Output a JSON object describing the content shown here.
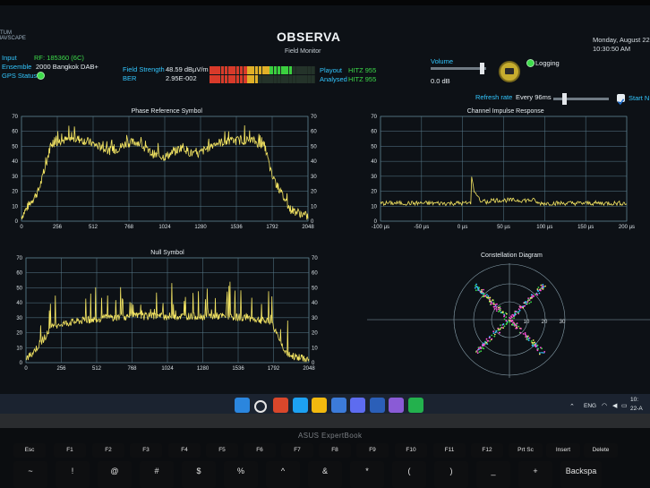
{
  "app": {
    "brand": "XTUM\nMAVSCAPE",
    "title": "OBSERVA",
    "subtitle": "Field Monitor",
    "date": "Monday, August 22",
    "time": "10:30:50 AM"
  },
  "status": {
    "input_label": "Input",
    "input_value": "RF: 185360 (6C)",
    "ensemble_label": "Ensemble",
    "ensemble_value": "2000 Bangkok DAB+",
    "gps_label": "GPS Status",
    "field_strength_label": "Field Strength",
    "field_strength_value": "48.59 dBµV/m",
    "ber_label": "BER",
    "ber_value": "2.95E-002",
    "playout_label": "Playout",
    "playout_value": "HITZ 955",
    "analysed_label": "Analysed",
    "analysed_value": "HITZ 955",
    "volume_label": "Volume",
    "volume_value": "0.0 dB",
    "volume_level": 0.92,
    "logging_label": "Logging",
    "refresh_label": "Refresh rate",
    "refresh_value": "Every 96ms",
    "refresh_level": 0.2,
    "start_label": "Start N",
    "field_strength_level": 0.78,
    "ber_level": 0.45,
    "colors": {
      "green": "#3ddc4a",
      "cyan": "#33c7ff",
      "trace": "#f5e663",
      "grid": "#5a7e8e"
    }
  },
  "chart_data": [
    {
      "type": "line",
      "title": "Phase Reference Symbol",
      "x_ticks": [
        "0",
        "256",
        "512",
        "768",
        "1024",
        "1280",
        "1536",
        "1792",
        "2048"
      ],
      "y_ticks": [
        "0",
        "10",
        "20",
        "30",
        "40",
        "50",
        "60",
        "70"
      ],
      "xlim": [
        0,
        2048
      ],
      "ylim": [
        0,
        70
      ],
      "envelope": [
        [
          0,
          3
        ],
        [
          60,
          12
        ],
        [
          120,
          20
        ],
        [
          170,
          35
        ],
        [
          210,
          52
        ],
        [
          300,
          54
        ],
        [
          400,
          55
        ],
        [
          480,
          53
        ],
        [
          550,
          50
        ],
        [
          620,
          47
        ],
        [
          680,
          48
        ],
        [
          750,
          52
        ],
        [
          830,
          53
        ],
        [
          900,
          47
        ],
        [
          960,
          44
        ],
        [
          1024,
          43
        ],
        [
          1090,
          46
        ],
        [
          1150,
          50
        ],
        [
          1200,
          46
        ],
        [
          1250,
          44
        ],
        [
          1300,
          47
        ],
        [
          1380,
          52
        ],
        [
          1450,
          53
        ],
        [
          1550,
          54
        ],
        [
          1650,
          54
        ],
        [
          1740,
          50
        ],
        [
          1790,
          30
        ],
        [
          1850,
          20
        ],
        [
          1920,
          8
        ],
        [
          2048,
          3
        ]
      ]
    },
    {
      "type": "line",
      "title": "Null Symbol",
      "x_ticks": [
        "0",
        "256",
        "512",
        "768",
        "1024",
        "1280",
        "1536",
        "1792",
        "2048"
      ],
      "y_ticks": [
        "0",
        "10",
        "20",
        "30",
        "40",
        "50",
        "60",
        "70"
      ],
      "xlim": [
        0,
        2048
      ],
      "ylim": [
        0,
        70
      ],
      "envelope": [
        [
          0,
          2
        ],
        [
          80,
          10
        ],
        [
          160,
          20
        ],
        [
          200,
          25
        ],
        [
          400,
          28
        ],
        [
          600,
          30
        ],
        [
          800,
          31
        ],
        [
          1024,
          31
        ],
        [
          1200,
          31
        ],
        [
          1400,
          31
        ],
        [
          1600,
          30
        ],
        [
          1780,
          27
        ],
        [
          1830,
          15
        ],
        [
          1900,
          5
        ],
        [
          2048,
          2
        ]
      ]
    },
    {
      "type": "line",
      "title": "Channel Impulse Response",
      "x_ticks": [
        "-100 µs",
        "-50 µs",
        "0 µs",
        "50 µs",
        "100 µs",
        "150 µs",
        "200 µs"
      ],
      "y_ticks": [
        "0",
        "10",
        "20",
        "30",
        "40",
        "50",
        "60",
        "70"
      ],
      "xlim": [
        -125,
        215
      ],
      "ylim": [
        0,
        70
      ],
      "peak": {
        "x": 0,
        "y": 31
      },
      "baseline": 12
    },
    {
      "type": "scatter",
      "title": "Constellation Diagram",
      "ring_labels": [
        "10",
        "20",
        "30"
      ]
    }
  ],
  "taskbar": {
    "lang": "ENG",
    "clock_time": "10:",
    "clock_date": "22-A",
    "icons": [
      "windows-icon",
      "search-icon",
      "chrome-icon",
      "edge-icon",
      "folder-icon",
      "mail-icon",
      "store-icon",
      "word-icon",
      "observa-icon",
      "line-icon"
    ]
  },
  "laptop": {
    "brand": "ASUS ExpertBook"
  },
  "keys_row1": [
    {
      "label": "Esc"
    },
    {
      "label": "F1"
    },
    {
      "label": "F2"
    },
    {
      "label": "F3"
    },
    {
      "label": "F4"
    },
    {
      "label": "F5"
    },
    {
      "label": "F6"
    },
    {
      "label": "F7"
    },
    {
      "label": "F8"
    },
    {
      "label": "F9"
    },
    {
      "label": "F10"
    },
    {
      "label": "F11"
    },
    {
      "label": "F12"
    },
    {
      "label": "Prt Sc"
    },
    {
      "label": "Insert"
    },
    {
      "label": "Delete"
    }
  ],
  "keys_row2": [
    {
      "label": "~"
    },
    {
      "label": "!"
    },
    {
      "label": "@"
    },
    {
      "label": "#"
    },
    {
      "label": "$"
    },
    {
      "label": "%"
    },
    {
      "label": "^"
    },
    {
      "label": "&"
    },
    {
      "label": "*"
    },
    {
      "label": "("
    },
    {
      "label": ")"
    },
    {
      "label": "_"
    },
    {
      "label": "+"
    },
    {
      "label": "Backspa"
    }
  ]
}
